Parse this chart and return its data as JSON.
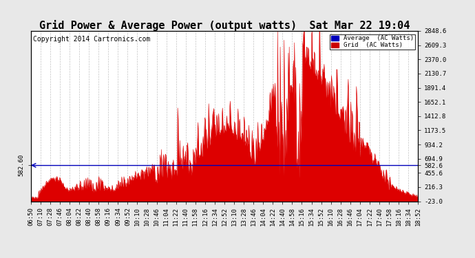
{
  "title": "Grid Power & Average Power (output watts)  Sat Mar 22 19:04",
  "copyright": "Copyright 2014 Cartronics.com",
  "legend_labels": [
    "Average  (AC Watts)",
    "Grid  (AC Watts)"
  ],
  "legend_colors": [
    "#0000bb",
    "#cc0000"
  ],
  "avg_line_value": 582.6,
  "avg_line_label": "582.60",
  "y_right_labels": [
    2848.6,
    2609.3,
    2370.0,
    2130.7,
    1891.4,
    1652.1,
    1412.8,
    1173.5,
    934.2,
    694.9,
    582.6,
    455.6,
    216.3,
    -23.0
  ],
  "ylim_min": -23.0,
  "ylim_max": 2848.6,
  "background_color": "#e8e8e8",
  "plot_bg": "#ffffff",
  "grid_color": "#aaaaaa",
  "fill_color": "#dd0000",
  "avg_line_color": "#0000bb",
  "x_tick_labels": [
    "06:50",
    "07:10",
    "07:28",
    "07:46",
    "08:04",
    "08:22",
    "08:40",
    "08:58",
    "09:16",
    "09:34",
    "09:52",
    "10:10",
    "10:28",
    "10:46",
    "11:04",
    "11:22",
    "11:40",
    "11:58",
    "12:16",
    "12:34",
    "12:52",
    "13:10",
    "13:28",
    "13:46",
    "14:04",
    "14:22",
    "14:40",
    "14:58",
    "15:16",
    "15:34",
    "15:52",
    "16:10",
    "16:28",
    "16:46",
    "17:04",
    "17:22",
    "17:40",
    "17:58",
    "18:16",
    "18:34",
    "18:52"
  ],
  "title_fontsize": 11,
  "copyright_fontsize": 7,
  "tick_fontsize": 6.5
}
